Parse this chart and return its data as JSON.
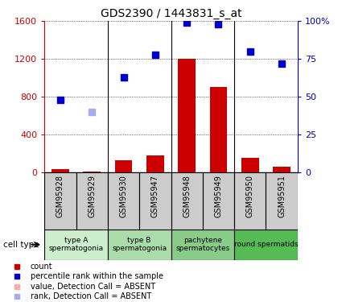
{
  "title": "GDS2390 / 1443831_s_at",
  "samples": [
    "GSM95928",
    "GSM95929",
    "GSM95930",
    "GSM95947",
    "GSM95948",
    "GSM95949",
    "GSM95950",
    "GSM95951"
  ],
  "count_values": [
    30,
    10,
    130,
    180,
    1200,
    900,
    155,
    60
  ],
  "count_absent": [
    false,
    false,
    false,
    false,
    false,
    false,
    false,
    false
  ],
  "rank_values": [
    48,
    null,
    63,
    78,
    99,
    98,
    80,
    72
  ],
  "rank_absent": [
    false,
    false,
    false,
    false,
    false,
    false,
    false,
    false
  ],
  "absent_rank_values": [
    null,
    40,
    null,
    null,
    null,
    null,
    null,
    null
  ],
  "cell_groups": [
    {
      "label": "type A\nspermatogonia",
      "start": 0,
      "end": 2,
      "color": "#cceecc"
    },
    {
      "label": "type B\nspermatogonia",
      "start": 2,
      "end": 4,
      "color": "#aaddaa"
    },
    {
      "label": "pachytene\nspermatocytes",
      "start": 4,
      "end": 6,
      "color": "#88cc88"
    },
    {
      "label": "round spermatids",
      "start": 6,
      "end": 8,
      "color": "#55bb55"
    }
  ],
  "left_ylim": [
    0,
    1600
  ],
  "left_yticks": [
    0,
    400,
    800,
    1200,
    1600
  ],
  "right_ylim": [
    0,
    100
  ],
  "right_yticks": [
    0,
    25,
    50,
    75,
    100
  ],
  "right_yticklabels": [
    "0",
    "25",
    "50",
    "75",
    "100%"
  ],
  "bar_color": "#cc0000",
  "bar_absent_color": "#ffaaaa",
  "rank_color": "#0000cc",
  "rank_absent_color": "#aaaaee",
  "left_axis_color": "#cc0000",
  "right_axis_color": "#0000bb",
  "grid_color": "#000000",
  "bg_color": "#ffffff",
  "sample_bg_color": "#cccccc",
  "bar_width": 0.55,
  "legend_items": [
    {
      "color": "#cc0000",
      "label": "count"
    },
    {
      "color": "#0000cc",
      "label": "percentile rank within the sample"
    },
    {
      "color": "#ffaaaa",
      "label": "value, Detection Call = ABSENT"
    },
    {
      "color": "#aaaaee",
      "label": "rank, Detection Call = ABSENT"
    }
  ]
}
